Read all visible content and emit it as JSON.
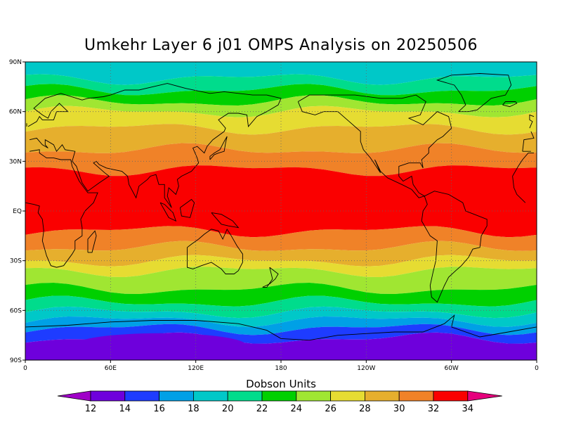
{
  "title": "Umkehr Layer 6 j01 OMPS Analysis on 20250506",
  "colorbar": {
    "title": "Dobson Units",
    "levels": [
      "12",
      "14",
      "16",
      "18",
      "20",
      "22",
      "24",
      "26",
      "28",
      "30",
      "32",
      "34"
    ],
    "colors": [
      "#a000c8",
      "#6e00dc",
      "#1e3cff",
      "#00a0e6",
      "#00c8c8",
      "#00dc8c",
      "#00d000",
      "#a0e632",
      "#e6dc32",
      "#e6af2d",
      "#f08228",
      "#fa0000",
      "#e6007d"
    ]
  },
  "axes": {
    "y_ticks": [
      "90N",
      "60N",
      "30N",
      "EQ",
      "30S",
      "60S",
      "90S"
    ],
    "x_ticks": [
      "0",
      "60E",
      "120E",
      "180",
      "120W",
      "60W",
      "0"
    ]
  },
  "chart_data": {
    "type": "heatmap",
    "title": "Umkehr Layer 6 j01 OMPS Analysis on 20250506",
    "units": "Dobson Units",
    "xlim": [
      0,
      360
    ],
    "ylim": [
      -90,
      90
    ],
    "grid": true,
    "zonal_bands": [
      {
        "lat_top": 90,
        "lat_bottom": 80,
        "value_du": 18
      },
      {
        "lat_top": 80,
        "lat_bottom": 73,
        "value_du": 20
      },
      {
        "lat_top": 73,
        "lat_bottom": 66,
        "value_du": 22
      },
      {
        "lat_top": 66,
        "lat_bottom": 60,
        "value_du": 24
      },
      {
        "lat_top": 60,
        "lat_bottom": 50,
        "value_du": 26
      },
      {
        "lat_top": 50,
        "lat_bottom": 37,
        "value_du": 28
      },
      {
        "lat_top": 37,
        "lat_bottom": 25,
        "value_du": 30
      },
      {
        "lat_top": 25,
        "lat_bottom": -12,
        "value_du": 32
      },
      {
        "lat_top": -12,
        "lat_bottom": -22,
        "value_du": 30
      },
      {
        "lat_top": -22,
        "lat_bottom": -30,
        "value_du": 28
      },
      {
        "lat_top": -30,
        "lat_bottom": -36,
        "value_du": 26
      },
      {
        "lat_top": -36,
        "lat_bottom": -47,
        "value_du": 24
      },
      {
        "lat_top": -47,
        "lat_bottom": -55,
        "value_du": 22
      },
      {
        "lat_top": -55,
        "lat_bottom": -61,
        "value_du": 20
      },
      {
        "lat_top": -61,
        "lat_bottom": -66,
        "value_du": 18
      },
      {
        "lat_top": -66,
        "lat_bottom": -71,
        "value_du": 16
      },
      {
        "lat_top": -71,
        "lat_bottom": -77,
        "value_du": 14
      },
      {
        "lat_top": -77,
        "lat_bottom": -90,
        "value_du": 13
      }
    ],
    "minimum_region": {
      "lon_center": 95,
      "lat_center": -81,
      "value_du": 12
    }
  }
}
